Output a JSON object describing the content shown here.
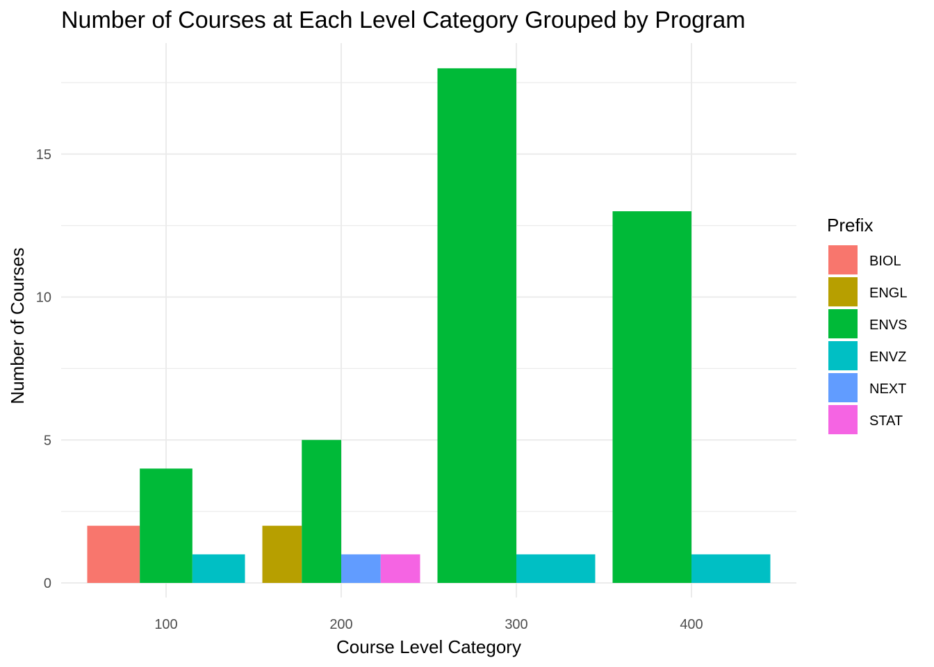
{
  "chart_data": {
    "type": "bar",
    "title": "Number of Courses at Each Level Category Grouped by Program",
    "xlabel": "Course Level Category",
    "ylabel": "Number of Courses",
    "categories": [
      "100",
      "200",
      "300",
      "400"
    ],
    "ylim": [
      0,
      19
    ],
    "yticks": [
      "0",
      "5",
      "10",
      "15"
    ],
    "grid": true,
    "legend": {
      "title": "Prefix",
      "position": "right"
    },
    "series": [
      {
        "name": "BIOL",
        "color": "#F8766D",
        "values": [
          2,
          null,
          null,
          null
        ]
      },
      {
        "name": "ENGL",
        "color": "#B79F00",
        "values": [
          null,
          2,
          null,
          null
        ]
      },
      {
        "name": "ENVS",
        "color": "#00BA38",
        "values": [
          4,
          5,
          18,
          13
        ]
      },
      {
        "name": "ENVZ",
        "color": "#00BFC4",
        "values": [
          1,
          null,
          1,
          1
        ]
      },
      {
        "name": "NEXT",
        "color": "#619CFF",
        "values": [
          null,
          1,
          null,
          null
        ]
      },
      {
        "name": "STAT",
        "color": "#F564E3",
        "values": [
          null,
          1,
          null,
          null
        ]
      }
    ]
  }
}
